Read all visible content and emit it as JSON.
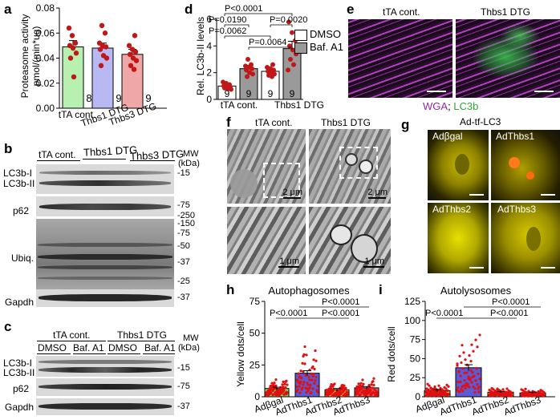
{
  "panels": {
    "a": "a",
    "b": "b",
    "c": "c",
    "d": "d",
    "e": "e",
    "f": "f",
    "g": "g",
    "h": "h",
    "i": "i"
  },
  "panel_a": {
    "ylabel_line1": "Proteasome activity",
    "ylabel_line2": "pmol/(min*ug)",
    "categories": [
      "tTA cont.",
      "Thbs1 DTG",
      "Thbs3 DTG"
    ],
    "n": [
      "8",
      "9",
      "9"
    ],
    "colors": [
      "#b7f0b0",
      "#b8b8f2",
      "#f0a7a7"
    ]
  },
  "panel_b": {
    "groups": [
      "tTA cont.",
      "Thbs1 DTG",
      "Thbs3 DTG"
    ],
    "mw": "MW",
    "kda": "(kDa)",
    "rows": [
      "LC3b-I",
      "LC3b-II",
      "p62",
      "Ubiq.",
      "Gapdh"
    ],
    "markers": [
      "-15",
      "-75",
      "-250",
      "-150",
      "-75",
      "-50",
      "-37",
      "-25",
      "-37"
    ]
  },
  "panel_c": {
    "groups": [
      "tTA cont.",
      "Thbs1 DTG"
    ],
    "treatments": [
      "DMSO",
      "Baf. A1",
      "DMSO",
      "Baf. A1"
    ],
    "mw": "MW",
    "kda": "(kDa)",
    "rows": [
      "LC3b-I",
      "LC3b-II",
      "p62",
      "Gapdh"
    ],
    "markers": [
      "-15",
      "-75",
      "-37"
    ]
  },
  "panel_d": {
    "ylabel": "Rel. LC3b-II levels",
    "categories": [
      "tTA cont.",
      "Thbs1 DTG"
    ],
    "n": [
      "9",
      "9",
      "9",
      "9"
    ],
    "pvals": [
      "P<0.0001",
      "P=0.0190",
      "P=0.0020",
      "P=0.0062",
      "P=0.0064"
    ],
    "legend": [
      "DMSO",
      "Baf. A1"
    ]
  },
  "panel_e": {
    "titles": [
      "tTA cont.",
      "Thbs1 DTG"
    ],
    "legend_a": "WGA",
    "legend_sep": "; ",
    "legend_b": "LC3b"
  },
  "panel_f": {
    "titles": [
      "tTA cont.",
      "Thbs1 DTG"
    ],
    "scales": [
      "2 μm",
      "2 μm",
      "1 μm",
      "1 μm"
    ]
  },
  "panel_g": {
    "title": "Ad-tf-LC3",
    "labels": [
      "Adβgal",
      "AdThbs1",
      "AdThbs2",
      "AdThbs3"
    ]
  },
  "panel_h": {
    "title": "Autophagosomes",
    "ylabel": "Yellow dots/cell",
    "categories": [
      "Adβgal",
      "AdThbs1",
      "AdThbs2",
      "AdThbs3"
    ],
    "pvals": [
      "P<0.0001",
      "P<0.0001",
      "P<0.0001"
    ]
  },
  "panel_i": {
    "title": "Autolysosomes",
    "ylabel": "Red dots/cell",
    "categories": [
      "Adβgal",
      "AdThbs1",
      "AdThbs2",
      "AdThbs3"
    ],
    "pvals": [
      "P<0.0001",
      "P<0.0001",
      "P<0.0001"
    ]
  },
  "chart_data": [
    {
      "type": "bar",
      "categories": [
        "tTA cont.",
        "Thbs1 DTG",
        "Thbs3 DTG"
      ],
      "values": [
        0.049,
        0.048,
        0.043
      ],
      "errors": [
        0.005,
        0.004,
        0.004
      ],
      "ylim": [
        0,
        0.08
      ],
      "yticks": [
        0.0,
        0.02,
        0.04,
        0.06,
        0.08
      ],
      "ytick_labels": [
        "0.00",
        "0.02",
        "0.04",
        "0.06",
        "0.08"
      ],
      "points": [
        [
          0.064,
          0.058,
          0.052,
          0.05,
          0.048,
          0.044,
          0.04,
          0.025
        ],
        [
          0.066,
          0.06,
          0.052,
          0.05,
          0.049,
          0.047,
          0.042,
          0.04,
          0.034
        ],
        [
          0.058,
          0.05,
          0.047,
          0.045,
          0.043,
          0.04,
          0.038,
          0.034,
          0.031
        ]
      ]
    },
    {
      "type": "bar",
      "categories": [
        "tTA cont.",
        "Thbs1 DTG"
      ],
      "series": [
        {
          "name": "DMSO",
          "values": [
            1.0,
            2.1
          ],
          "errors": [
            0.15,
            0.15
          ]
        },
        {
          "name": "Baf. A1",
          "values": [
            2.3,
            3.8
          ],
          "errors": [
            0.25,
            0.55
          ]
        }
      ],
      "ylim": [
        0,
        6
      ],
      "yticks": [
        0,
        2,
        4,
        6
      ],
      "ytick_labels": [
        "0",
        "2",
        "4",
        "6"
      ],
      "points": [
        [
          1.3,
          1.2,
          1.1,
          1.0,
          0.95,
          0.9,
          0.85,
          0.8,
          0.75
        ],
        [
          3.0,
          2.6,
          2.5,
          2.4,
          2.3,
          2.2,
          2.0,
          1.9,
          1.7
        ],
        [
          2.6,
          2.4,
          2.3,
          2.2,
          2.1,
          2.0,
          1.9,
          1.8,
          1.7
        ],
        [
          5.8,
          5.0,
          4.4,
          4.0,
          3.7,
          3.4,
          3.0,
          2.6,
          2.2
        ]
      ]
    },
    {
      "type": "bar",
      "categories": [
        "Adβgal",
        "AdThbs1",
        "AdThbs2",
        "AdThbs3"
      ],
      "values": [
        6.5,
        18.5,
        5.5,
        7
      ],
      "errors": [
        1.0,
        2.0,
        1.0,
        1.0
      ],
      "ylim": [
        0,
        75
      ],
      "yticks": [
        0,
        25,
        50,
        75
      ],
      "ytick_labels": [
        "0",
        "25",
        "50",
        "75"
      ],
      "colors": [
        "#7ed957",
        "#5b5bd6",
        "#f2d21a",
        "#e35b5b"
      ]
    },
    {
      "type": "bar",
      "categories": [
        "Adβgal",
        "AdThbs1",
        "AdThbs2",
        "AdThbs3"
      ],
      "values": [
        8,
        38,
        6,
        5
      ],
      "errors": [
        1.5,
        4.0,
        1.0,
        1.0
      ],
      "ylim": [
        0,
        125
      ],
      "yticks": [
        0,
        25,
        50,
        75,
        100,
        125
      ],
      "ytick_labels": [
        "0",
        "25",
        "50",
        "75",
        "100",
        "125"
      ],
      "colors": [
        "#7ed957",
        "#5b5bd6",
        "#f2d21a",
        "#e35b5b"
      ]
    }
  ]
}
